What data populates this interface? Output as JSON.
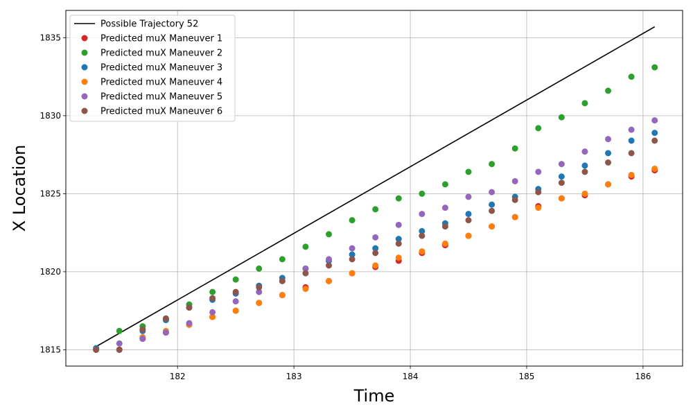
{
  "chart_data": {
    "type": "scatter",
    "title": "",
    "xlabel": "Time",
    "ylabel": "X Location",
    "xlim": [
      181.04,
      186.34
    ],
    "ylim": [
      1813.95,
      1836.75
    ],
    "x_ticks": [
      182,
      183,
      184,
      185,
      186
    ],
    "y_ticks": [
      1815,
      1820,
      1825,
      1830,
      1835
    ],
    "grid": true,
    "legend_position": "top-left",
    "line": {
      "name": "Possible Trajectory 52",
      "color": "#000000",
      "x": [
        181.3,
        186.1
      ],
      "y": [
        1815.2,
        1835.7
      ]
    },
    "x": [
      181.3,
      181.5,
      181.7,
      181.9,
      182.1,
      182.3,
      182.5,
      182.7,
      182.9,
      183.1,
      183.3,
      183.5,
      183.7,
      183.9,
      184.1,
      184.3,
      184.5,
      184.7,
      184.9,
      185.1,
      185.3,
      185.5,
      185.7,
      185.9,
      186.1
    ],
    "series": [
      {
        "name": "Predicted muX Maneuver 1",
        "color": "#d62728",
        "values": [
          1815.0,
          1815.0,
          1815.7,
          1816.1,
          1816.6,
          1817.1,
          1817.5,
          1818.0,
          1818.5,
          1819.0,
          1819.4,
          1819.9,
          1820.3,
          1820.7,
          1821.2,
          1821.7,
          1822.3,
          1822.9,
          1823.5,
          1824.2,
          1824.7,
          1824.9,
          1825.6,
          1826.1,
          1826.5
        ]
      },
      {
        "name": "Predicted muX Maneuver 2",
        "color": "#2ca02c",
        "values": [
          1815.0,
          1816.2,
          1816.5,
          1817.0,
          1817.9,
          1818.7,
          1819.5,
          1820.2,
          1820.8,
          1821.6,
          1822.4,
          1823.3,
          1824.0,
          1824.7,
          1825.0,
          1825.6,
          1826.4,
          1826.9,
          1827.9,
          1829.2,
          1829.9,
          1830.8,
          1831.6,
          1832.5,
          1833.1
        ]
      },
      {
        "name": "Predicted muX Maneuver 3",
        "color": "#1f77b4",
        "values": [
          1815.1,
          1815.0,
          1816.2,
          1816.9,
          1817.7,
          1818.2,
          1818.6,
          1819.1,
          1819.6,
          1820.2,
          1820.7,
          1821.1,
          1821.5,
          1822.1,
          1822.6,
          1823.1,
          1823.7,
          1824.3,
          1824.8,
          1825.3,
          1826.1,
          1826.8,
          1827.6,
          1828.4,
          1828.9
        ]
      },
      {
        "name": "Predicted muX Maneuver 4",
        "color": "#ff7f0e",
        "values": [
          1815.0,
          1815.0,
          1815.8,
          1816.2,
          1816.6,
          1817.1,
          1817.5,
          1818.0,
          1818.5,
          1818.9,
          1819.4,
          1819.9,
          1820.4,
          1820.9,
          1821.3,
          1821.8,
          1822.3,
          1822.9,
          1823.5,
          1824.1,
          1824.7,
          1825.0,
          1825.6,
          1826.2,
          1826.6
        ]
      },
      {
        "name": "Predicted muX Maneuver 5",
        "color": "#9467bd",
        "values": [
          1815.0,
          1815.4,
          1815.7,
          1816.1,
          1816.7,
          1817.4,
          1818.1,
          1818.7,
          1819.4,
          1820.2,
          1820.8,
          1821.5,
          1822.2,
          1823.0,
          1823.7,
          1824.1,
          1824.8,
          1825.1,
          1825.8,
          1826.4,
          1826.9,
          1827.7,
          1828.5,
          1829.1,
          1829.7
        ]
      },
      {
        "name": "Predicted muX Maneuver 6",
        "color": "#8c564b",
        "values": [
          1815.0,
          1815.0,
          1816.3,
          1817.0,
          1817.7,
          1818.3,
          1818.7,
          1819.0,
          1819.4,
          1819.9,
          1820.4,
          1820.8,
          1821.2,
          1821.8,
          1822.3,
          1822.9,
          1823.3,
          1823.9,
          1824.6,
          1825.1,
          1825.7,
          1826.4,
          1827.0,
          1827.6,
          1828.4
        ]
      }
    ]
  }
}
